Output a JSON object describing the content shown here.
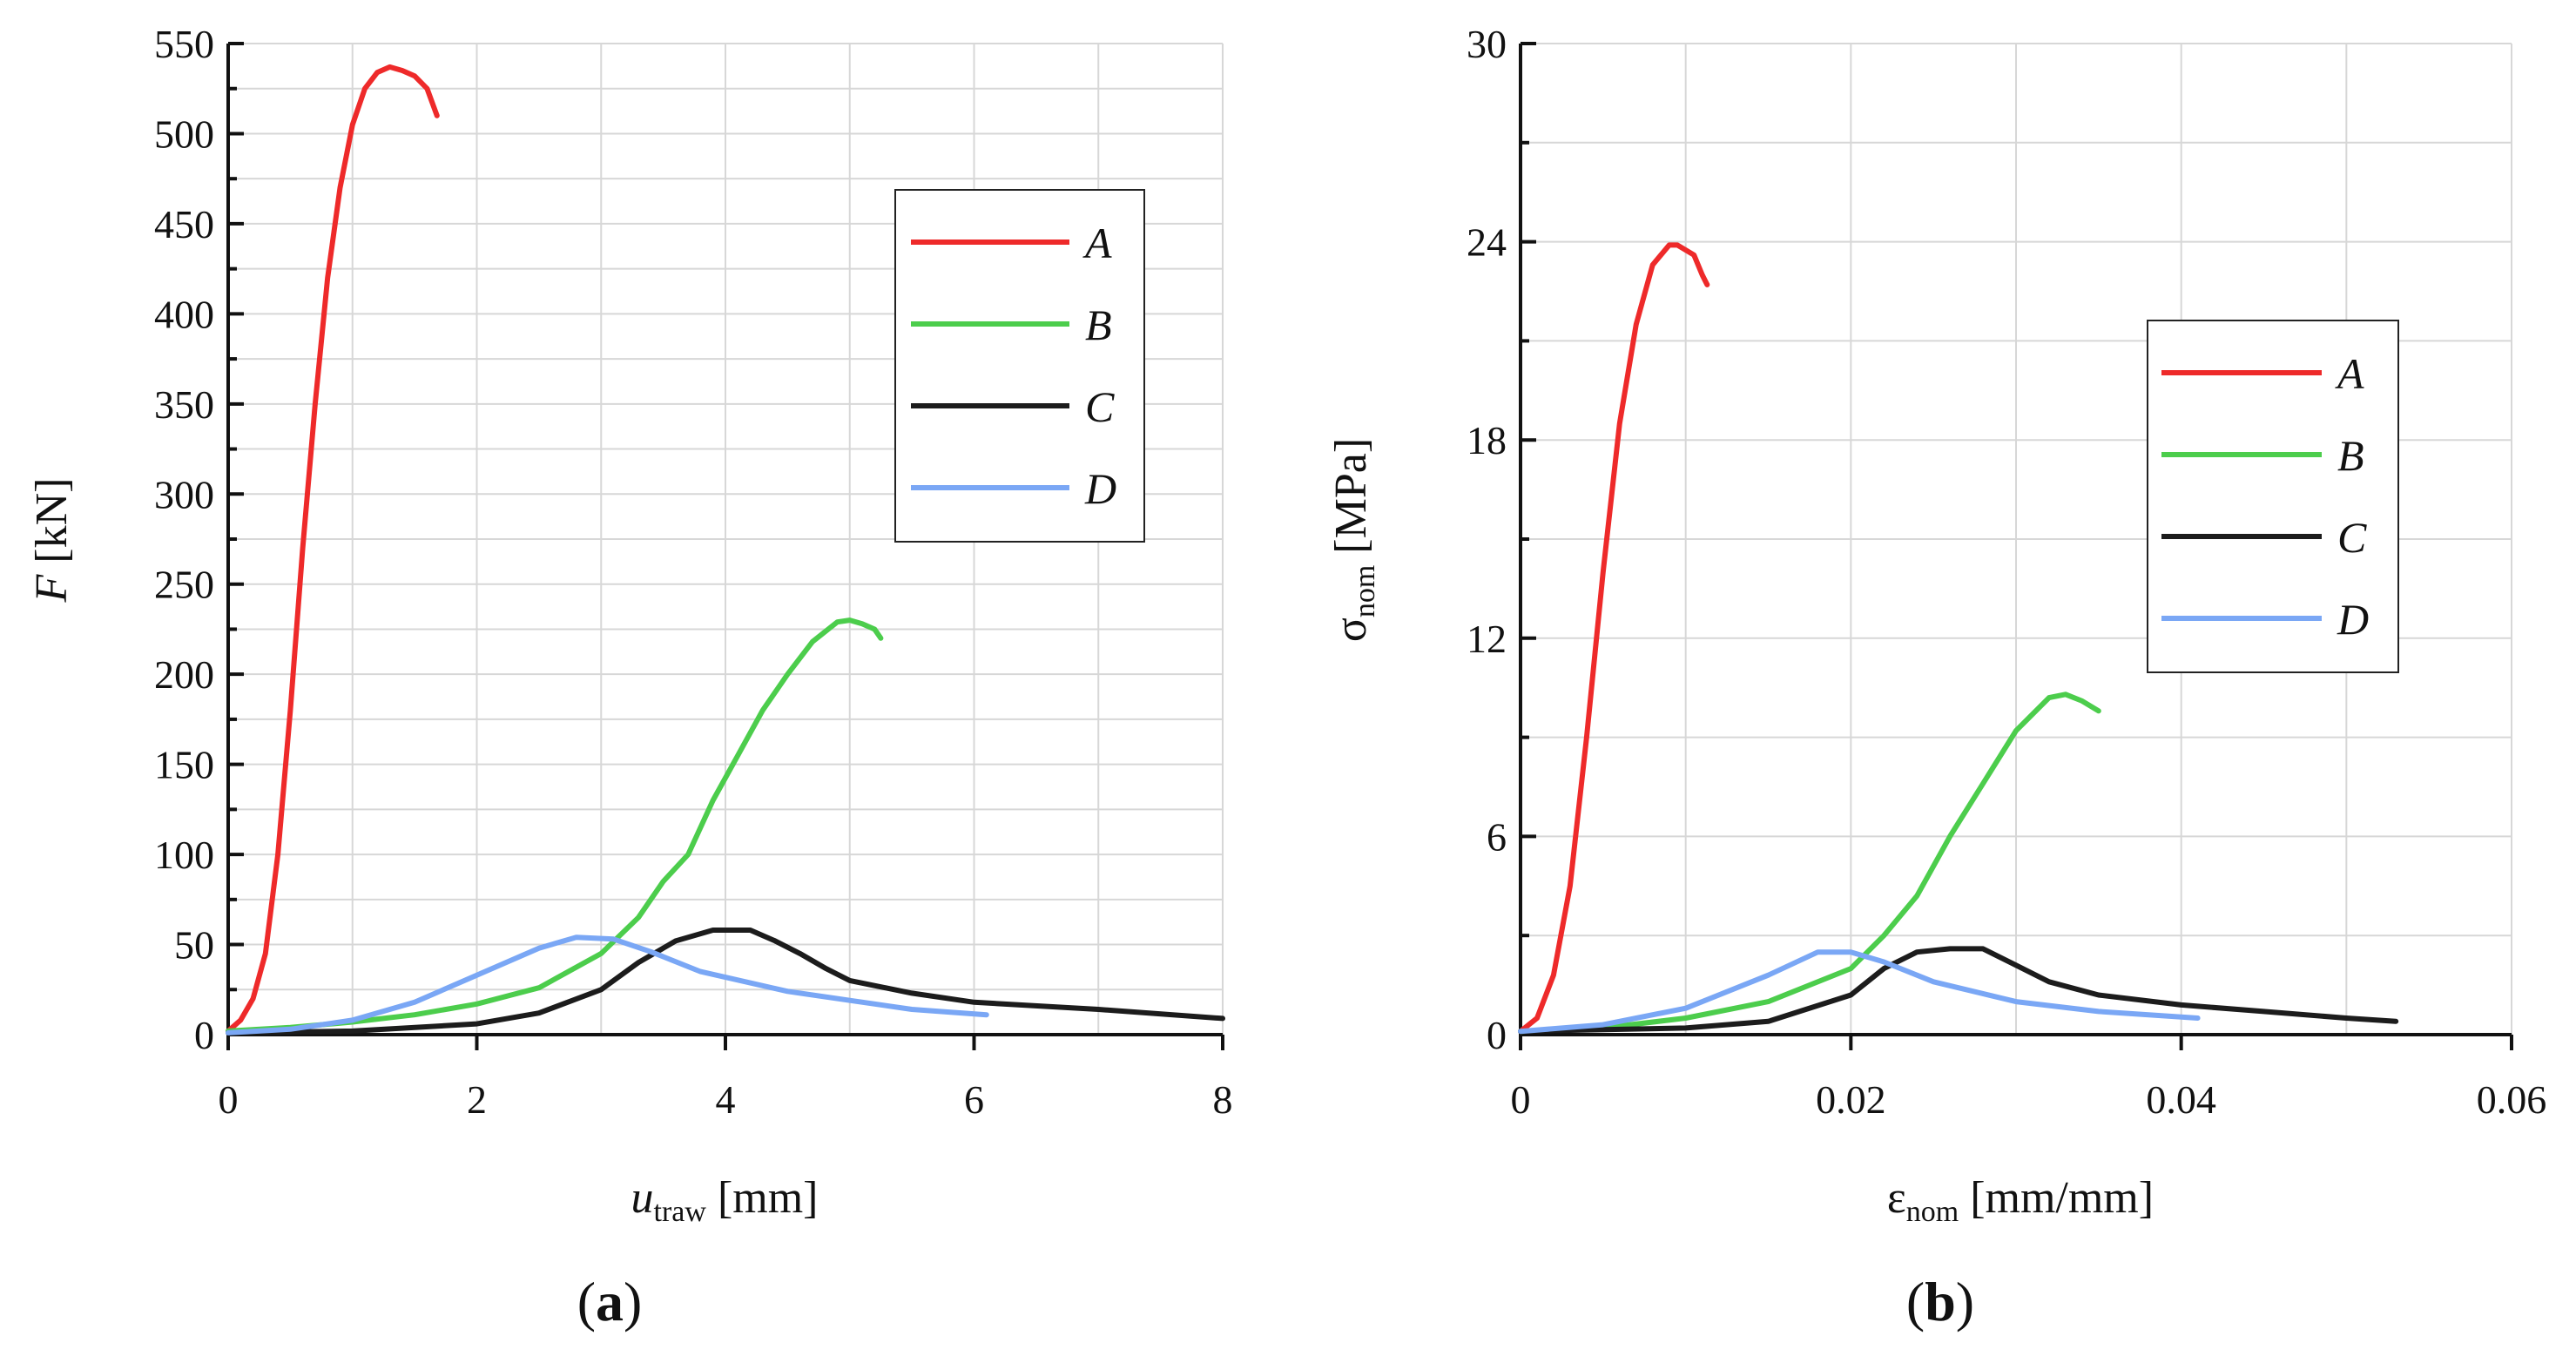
{
  "colors": {
    "A": "#ee2a2a",
    "B": "#4ccd4c",
    "C": "#1c1c1c",
    "D": "#7aa7f5"
  },
  "chart_data": [
    {
      "type": "line",
      "panel_label": "(a)",
      "panel_open": "(",
      "panel_letter": "a",
      "panel_close": ")",
      "ylabel_var": "F",
      "ylabel_unit": " [kN]",
      "xlabel_var": "u",
      "xlabel_sub": "traw",
      "xlabel_unit": " [mm]",
      "xlim": [
        0,
        8
      ],
      "ylim": [
        0,
        550
      ],
      "xticks": [
        0,
        2,
        4,
        6,
        8
      ],
      "xtick_labels": [
        "0",
        "2",
        "4",
        "6",
        "8"
      ],
      "yticks": [
        0,
        50,
        100,
        150,
        200,
        250,
        300,
        350,
        400,
        450,
        500,
        550
      ],
      "ytick_labels": [
        "0",
        "50",
        "100",
        "150",
        "200",
        "250",
        "300",
        "350",
        "400",
        "450",
        "500",
        "550"
      ],
      "xgrid": [
        0,
        1,
        2,
        3,
        4,
        5,
        6,
        7,
        8
      ],
      "ygrid": [
        0,
        25,
        50,
        75,
        100,
        125,
        150,
        175,
        200,
        225,
        250,
        275,
        300,
        325,
        350,
        375,
        400,
        425,
        450,
        475,
        500,
        525,
        550
      ],
      "legend": [
        "A",
        "B",
        "C",
        "D"
      ],
      "legend_position": "upper-right",
      "grid": true,
      "series": [
        {
          "name": "A",
          "x": [
            0,
            0.1,
            0.2,
            0.3,
            0.4,
            0.5,
            0.6,
            0.7,
            0.8,
            0.9,
            1.0,
            1.1,
            1.2,
            1.3,
            1.4,
            1.5,
            1.6,
            1.68
          ],
          "y": [
            2,
            8,
            20,
            45,
            100,
            180,
            270,
            350,
            420,
            470,
            505,
            525,
            534,
            537,
            535,
            532,
            525,
            510
          ]
        },
        {
          "name": "B",
          "x": [
            0,
            0.5,
            1.0,
            1.5,
            2.0,
            2.5,
            3.0,
            3.3,
            3.5,
            3.7,
            3.9,
            4.1,
            4.3,
            4.5,
            4.7,
            4.9,
            5.0,
            5.1,
            5.2,
            5.25
          ],
          "y": [
            2,
            4,
            7,
            11,
            17,
            26,
            45,
            65,
            85,
            100,
            130,
            155,
            180,
            200,
            218,
            229,
            230,
            228,
            225,
            220
          ]
        },
        {
          "name": "C",
          "x": [
            0,
            1,
            2,
            2.5,
            3,
            3.3,
            3.6,
            3.9,
            4.2,
            4.4,
            4.6,
            4.8,
            5,
            5.5,
            6,
            7,
            8
          ],
          "y": [
            1,
            2,
            6,
            12,
            25,
            40,
            52,
            58,
            58,
            52,
            45,
            37,
            30,
            23,
            18,
            14,
            9
          ]
        },
        {
          "name": "D",
          "x": [
            0,
            0.5,
            1,
            1.5,
            2,
            2.5,
            2.8,
            3.1,
            3.4,
            3.8,
            4.5,
            5,
            5.5,
            6.1
          ],
          "y": [
            1,
            3,
            8,
            18,
            33,
            48,
            54,
            53,
            46,
            35,
            24,
            19,
            14,
            11
          ]
        }
      ]
    },
    {
      "type": "line",
      "panel_label": "(b)",
      "panel_open": "(",
      "panel_letter": "b",
      "panel_close": ")",
      "ylabel_var": "σ",
      "ylabel_sub": "nom",
      "ylabel_unit": " [MPa]",
      "xlabel_var": "ε",
      "xlabel_sub": "nom",
      "xlabel_unit": " [mm/mm]",
      "xlim": [
        0,
        0.06
      ],
      "ylim": [
        0,
        30
      ],
      "xticks": [
        0,
        0.02,
        0.04,
        0.06
      ],
      "xtick_labels": [
        "0",
        "0.02",
        "0.04",
        "0.06"
      ],
      "yticks": [
        0,
        6,
        12,
        18,
        24,
        30
      ],
      "ytick_labels": [
        "0",
        "6",
        "12",
        "18",
        "24",
        "30"
      ],
      "yminor": [
        3,
        9,
        15,
        21,
        27
      ],
      "xgrid": [
        0,
        0.01,
        0.02,
        0.03,
        0.04,
        0.05,
        0.06
      ],
      "ygrid": [
        0,
        3,
        6,
        9,
        12,
        15,
        18,
        21,
        24,
        27,
        30
      ],
      "legend": [
        "A",
        "B",
        "C",
        "D"
      ],
      "legend_position": "center-right",
      "grid": true,
      "series": [
        {
          "name": "A",
          "x": [
            0,
            0.001,
            0.002,
            0.003,
            0.004,
            0.005,
            0.006,
            0.007,
            0.008,
            0.009,
            0.0095,
            0.0105,
            0.011,
            0.0113
          ],
          "y": [
            0.1,
            0.5,
            1.8,
            4.5,
            9,
            14,
            18.5,
            21.5,
            23.3,
            23.9,
            23.9,
            23.6,
            23,
            22.7
          ]
        },
        {
          "name": "B",
          "x": [
            0,
            0.005,
            0.01,
            0.015,
            0.02,
            0.022,
            0.024,
            0.026,
            0.028,
            0.03,
            0.032,
            0.033,
            0.034,
            0.035
          ],
          "y": [
            0.1,
            0.2,
            0.5,
            1.0,
            2.0,
            3.0,
            4.2,
            6.0,
            7.6,
            9.2,
            10.2,
            10.3,
            10.1,
            9.8
          ]
        },
        {
          "name": "C",
          "x": [
            0,
            0.01,
            0.015,
            0.02,
            0.022,
            0.024,
            0.026,
            0.028,
            0.03,
            0.032,
            0.035,
            0.04,
            0.045,
            0.05,
            0.053
          ],
          "y": [
            0.1,
            0.2,
            0.4,
            1.2,
            2.0,
            2.5,
            2.6,
            2.6,
            2.1,
            1.6,
            1.2,
            0.9,
            0.7,
            0.5,
            0.4
          ]
        },
        {
          "name": "D",
          "x": [
            0,
            0.005,
            0.01,
            0.015,
            0.018,
            0.02,
            0.022,
            0.025,
            0.03,
            0.035,
            0.041
          ],
          "y": [
            0.1,
            0.3,
            0.8,
            1.8,
            2.5,
            2.5,
            2.2,
            1.6,
            1.0,
            0.7,
            0.5
          ]
        }
      ]
    }
  ]
}
